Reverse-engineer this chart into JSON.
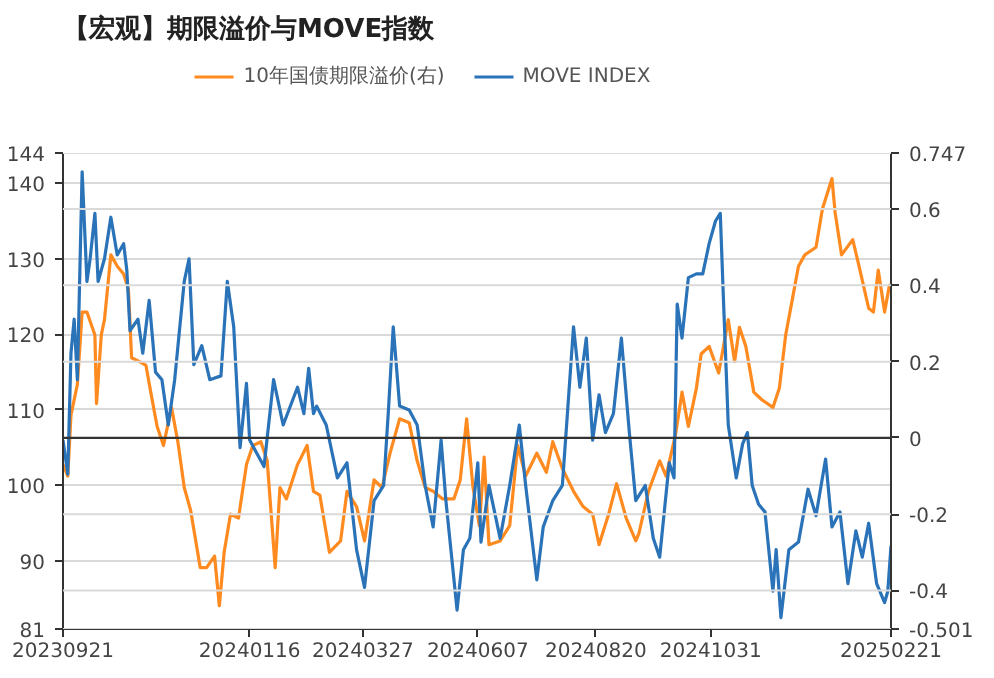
{
  "chart_data": {
    "type": "line",
    "title": "【宏观】期限溢价与MOVE指数",
    "xlim": [
      "2023-09-21",
      "2025-02-21"
    ],
    "xticks": [
      {
        "value": "2023-09-21",
        "label": "20230921"
      },
      {
        "value": "2024-01-16",
        "label": "20240116"
      },
      {
        "value": "2024-03-27",
        "label": "20240327"
      },
      {
        "value": "2024-06-07",
        "label": "20240607"
      },
      {
        "value": "2024-08-20",
        "label": "20240820"
      },
      {
        "value": "2024-10-31",
        "label": "20241031"
      },
      {
        "value": "2025-02-21",
        "label": "20250221"
      }
    ],
    "ylim": [
      81,
      144
    ],
    "yticks": [
      81,
      90,
      100,
      110,
      120,
      130,
      140,
      144
    ],
    "y2lim": [
      -0.501,
      0.747
    ],
    "y2ticks": [
      -0.501,
      -0.4,
      -0.2,
      0,
      0.2,
      0.4,
      0.6,
      0.747
    ],
    "grid": true,
    "legend": "top",
    "ref_lines": [
      {
        "axis": "y2",
        "value": 0,
        "color": "#333333"
      }
    ],
    "series": [
      {
        "name": "10年国债期限溢价(右)",
        "color": "#ff8a1f",
        "axis": "y2",
        "x": [
          "2023-09-21",
          "2023-09-24",
          "2023-09-26",
          "2023-09-30",
          "2023-10-03",
          "2023-10-06",
          "2023-10-11",
          "2023-10-12",
          "2023-10-15",
          "2023-10-17",
          "2023-10-21",
          "2023-10-25",
          "2023-10-29",
          "2023-11-01",
          "2023-11-03",
          "2023-11-08",
          "2023-11-12",
          "2023-11-15",
          "2023-11-19",
          "2023-11-23",
          "2023-11-28",
          "2023-12-02",
          "2023-12-06",
          "2023-12-10",
          "2023-12-16",
          "2023-12-20",
          "2023-12-25",
          "2023-12-28",
          "2023-12-31",
          "2024-01-04",
          "2024-01-09",
          "2024-01-14",
          "2024-01-18",
          "2024-01-23",
          "2024-01-27",
          "2024-02-01",
          "2024-02-04",
          "2024-02-08",
          "2024-02-15",
          "2024-02-21",
          "2024-02-25",
          "2024-02-29",
          "2024-03-06",
          "2024-03-13",
          "2024-03-17",
          "2024-03-23",
          "2024-03-28",
          "2024-04-03",
          "2024-04-08",
          "2024-04-13",
          "2024-04-19",
          "2024-04-25",
          "2024-04-30",
          "2024-05-05",
          "2024-05-10",
          "2024-05-16",
          "2024-05-23",
          "2024-05-27",
          "2024-05-31",
          "2024-06-04",
          "2024-06-08",
          "2024-06-11",
          "2024-06-14",
          "2024-06-21",
          "2024-06-27",
          "2024-07-02",
          "2024-07-07",
          "2024-07-14",
          "2024-07-20",
          "2024-07-24",
          "2024-07-30",
          "2024-08-06",
          "2024-08-12",
          "2024-08-18",
          "2024-08-22",
          "2024-08-28",
          "2024-09-02",
          "2024-09-08",
          "2024-09-14",
          "2024-09-16",
          "2024-09-22",
          "2024-09-29",
          "2024-10-03",
          "2024-10-09",
          "2024-10-13",
          "2024-10-17",
          "2024-10-22",
          "2024-10-25",
          "2024-10-30",
          "2024-11-05",
          "2024-11-11",
          "2024-11-15",
          "2024-11-18",
          "2024-11-22",
          "2024-11-27",
          "2024-12-02",
          "2024-12-09",
          "2024-12-13",
          "2024-12-17",
          "2024-12-21",
          "2024-12-25",
          "2024-12-29",
          "2025-01-05",
          "2025-01-09",
          "2025-01-15",
          "2025-01-17",
          "2025-01-21",
          "2025-01-28",
          "2025-02-01",
          "2025-02-07",
          "2025-02-10",
          "2025-02-13",
          "2025-02-17",
          "2025-02-20",
          "2025-02-21"
        ],
        "values": [
          -0.07,
          -0.1,
          0.06,
          0.14,
          0.33,
          0.33,
          0.27,
          0.09,
          0.27,
          0.31,
          0.48,
          0.45,
          0.43,
          0.39,
          0.21,
          0.2,
          0.19,
          0.12,
          0.03,
          -0.02,
          0.08,
          -0.01,
          -0.13,
          -0.19,
          -0.34,
          -0.34,
          -0.31,
          -0.44,
          -0.3,
          -0.2,
          -0.21,
          -0.07,
          -0.02,
          -0.01,
          -0.06,
          -0.34,
          -0.13,
          -0.16,
          -0.07,
          -0.02,
          -0.14,
          -0.15,
          -0.3,
          -0.27,
          -0.14,
          -0.18,
          -0.27,
          -0.11,
          -0.13,
          -0.04,
          0.05,
          0.04,
          -0.06,
          -0.13,
          -0.14,
          -0.16,
          -0.16,
          -0.11,
          0.05,
          -0.13,
          -0.23,
          -0.05,
          -0.28,
          -0.27,
          -0.23,
          -0.02,
          -0.1,
          -0.04,
          -0.09,
          -0.01,
          -0.08,
          -0.14,
          -0.18,
          -0.2,
          -0.28,
          -0.2,
          -0.12,
          -0.21,
          -0.27,
          -0.25,
          -0.14,
          -0.06,
          -0.1,
          0.01,
          0.12,
          0.03,
          0.13,
          0.22,
          0.24,
          0.17,
          0.31,
          0.2,
          0.29,
          0.24,
          0.12,
          0.1,
          0.08,
          0.13,
          0.27,
          0.36,
          0.45,
          0.48,
          0.5,
          0.6,
          0.68,
          0.59,
          0.48,
          0.52,
          0.45,
          0.34,
          0.33,
          0.44,
          0.33,
          0.4,
          0.4
        ]
      },
      {
        "name": "MOVE INDEX",
        "color": "#2a73b8",
        "x": [
          "2023-09-21",
          "2023-09-24",
          "2023-09-26",
          "2023-09-28",
          "2023-09-30",
          "2023-10-03",
          "2023-10-06",
          "2023-10-08",
          "2023-10-11",
          "2023-10-13",
          "2023-10-17",
          "2023-10-21",
          "2023-10-25",
          "2023-10-29",
          "2023-10-31",
          "2023-11-02",
          "2023-11-07",
          "2023-11-10",
          "2023-11-14",
          "2023-11-18",
          "2023-11-22",
          "2023-11-26",
          "2023-11-30",
          "2023-12-06",
          "2023-12-09",
          "2023-12-12",
          "2023-12-17",
          "2023-12-22",
          "2023-12-29",
          "2024-01-02",
          "2024-01-06",
          "2024-01-10",
          "2024-01-14",
          "2024-01-16",
          "2024-01-25",
          "2024-01-31",
          "2024-02-06",
          "2024-02-15",
          "2024-02-19",
          "2024-02-22",
          "2024-02-25",
          "2024-02-27",
          "2024-03-04",
          "2024-03-11",
          "2024-03-17",
          "2024-03-23",
          "2024-03-28",
          "2024-04-03",
          "2024-04-09",
          "2024-04-12",
          "2024-04-15",
          "2024-04-19",
          "2024-04-25",
          "2024-04-30",
          "2024-05-05",
          "2024-05-10",
          "2024-05-15",
          "2024-05-18",
          "2024-05-25",
          "2024-05-29",
          "2024-06-02",
          "2024-06-07",
          "2024-06-09",
          "2024-06-14",
          "2024-06-21",
          "2024-06-27",
          "2024-07-03",
          "2024-07-07",
          "2024-07-14",
          "2024-07-18",
          "2024-07-24",
          "2024-07-30",
          "2024-08-06",
          "2024-08-10",
          "2024-08-14",
          "2024-08-18",
          "2024-08-22",
          "2024-08-26",
          "2024-08-31",
          "2024-09-05",
          "2024-09-10",
          "2024-09-14",
          "2024-09-20",
          "2024-09-25",
          "2024-09-29",
          "2024-10-05",
          "2024-10-08",
          "2024-10-10",
          "2024-10-13",
          "2024-10-17",
          "2024-10-22",
          "2024-10-26",
          "2024-10-30",
          "2024-11-03",
          "2024-11-06",
          "2024-11-08",
          "2024-11-11",
          "2024-11-16",
          "2024-11-20",
          "2024-11-23",
          "2024-11-26",
          "2024-11-30",
          "2024-12-04",
          "2024-12-09",
          "2024-12-11",
          "2024-12-14",
          "2024-12-19",
          "2024-12-25",
          "2024-12-31",
          "2025-01-05",
          "2025-01-11",
          "2025-01-15",
          "2025-01-20",
          "2025-01-25",
          "2025-01-30",
          "2025-02-03",
          "2025-02-07",
          "2025-02-12",
          "2025-02-17",
          "2025-02-19",
          "2025-02-21"
        ],
        "values": [
          106,
          101.5,
          117.5,
          122,
          114,
          141.5,
          127,
          130,
          136,
          127,
          130,
          135.5,
          130.5,
          132,
          128.5,
          120.5,
          122,
          117.5,
          124.5,
          115,
          114,
          108,
          114,
          127,
          130,
          116,
          118.5,
          114,
          114.5,
          127,
          121,
          105,
          113.5,
          106,
          102.5,
          114,
          108,
          113,
          109.5,
          115.5,
          109.5,
          110.5,
          108,
          101,
          103,
          91.5,
          86.5,
          98,
          100,
          110,
          121,
          110.5,
          110,
          108,
          100,
          94.5,
          106,
          98,
          83.5,
          91.5,
          93,
          103,
          92.5,
          100,
          93,
          100,
          108,
          100,
          87.5,
          94.5,
          98,
          100,
          121,
          113,
          119.5,
          106,
          112,
          107,
          109.5,
          119.5,
          107,
          98,
          100,
          93,
          90.5,
          103,
          101,
          124,
          119.5,
          127.5,
          128,
          128,
          132,
          135,
          136,
          124.5,
          108,
          101,
          105.5,
          107,
          100,
          97.5,
          96.5,
          86,
          91.5,
          82.5,
          91.5,
          92.5,
          99.5,
          96,
          103.5,
          94.5,
          96.5,
          87,
          94,
          90.5,
          95,
          87,
          84.5,
          86,
          92
        ]
      }
    ]
  }
}
